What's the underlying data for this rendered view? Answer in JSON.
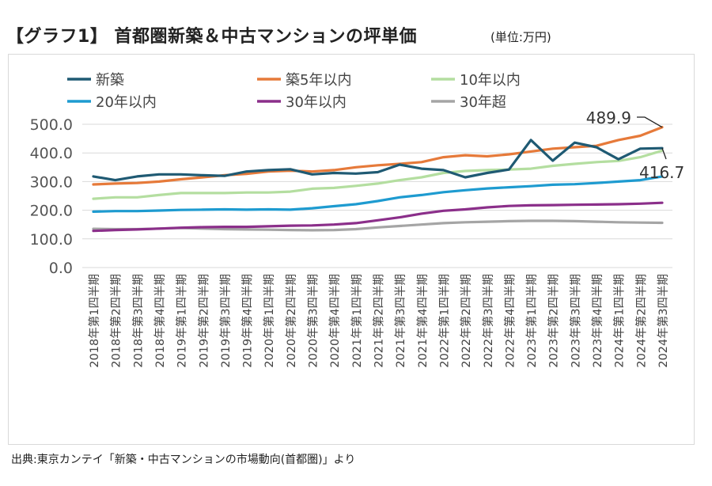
{
  "title": "【グラフ1】 首都圏新築＆中古マンションの坪単価",
  "unit": "(単位:万円)",
  "source": "出典:東京カンテイ「新築・中古マンションの市場動向(首都圏)」より",
  "chart_data": {
    "type": "line",
    "title": "【グラフ1】 首都圏新築＆中古マンションの坪単価",
    "ylabel": "",
    "xlabel": "",
    "ylim": [
      0,
      500
    ],
    "yticks": [
      "0.0",
      "100.0",
      "200.0",
      "300.0",
      "400.0",
      "500.0"
    ],
    "grid": true,
    "legend_position": "top",
    "categories": [
      "2018年第1四半期",
      "2018年第2四半期",
      "2018年第3四半期",
      "2018年第4四半期",
      "2019年第1四半期",
      "2019年第2四半期",
      "2019年第3四半期",
      "2019年第4四半期",
      "2020年第1四半期",
      "2020年第2四半期",
      "2020年第3四半期",
      "2020年第4四半期",
      "2021年第1四半期",
      "2021年第2四半期",
      "2021年第3四半期",
      "2021年第4四半期",
      "2022年第1四半期",
      "2022年第2四半期",
      "2022年第3四半期",
      "2022年第4四半期",
      "2023年第1四半期",
      "2023年第2四半期",
      "2023年第3四半期",
      "2023年第4四半期",
      "2024年第1四半期",
      "2024年第2四半期",
      "2024年第3四半期"
    ],
    "series": [
      {
        "name": "新築",
        "color": "#1f5a73",
        "values": [
          318,
          305,
          318,
          325,
          325,
          322,
          320,
          335,
          340,
          343,
          325,
          330,
          328,
          333,
          359,
          345,
          340,
          315,
          330,
          342,
          445,
          373,
          436,
          420,
          378,
          415,
          416.7
        ]
      },
      {
        "name": "築5年以内",
        "color": "#e67a3a",
        "values": [
          290,
          293,
          295,
          300,
          308,
          315,
          322,
          327,
          335,
          338,
          335,
          340,
          350,
          357,
          362,
          368,
          385,
          392,
          388,
          395,
          405,
          415,
          420,
          425,
          445,
          460,
          489.9
        ]
      },
      {
        "name": "10年以内",
        "color": "#b4dea0",
        "values": [
          240,
          245,
          245,
          253,
          260,
          260,
          260,
          262,
          262,
          265,
          275,
          278,
          285,
          293,
          305,
          315,
          330,
          337,
          340,
          342,
          345,
          355,
          362,
          368,
          372,
          385,
          408
        ]
      },
      {
        "name": "20年以内",
        "color": "#1e9bd0",
        "values": [
          195,
          197,
          197,
          199,
          201,
          202,
          203,
          202,
          203,
          202,
          207,
          214,
          221,
          232,
          245,
          253,
          263,
          270,
          276,
          280,
          284,
          289,
          291,
          295,
          300,
          305,
          318
        ]
      },
      {
        "name": "30年以内",
        "color": "#8b2f8a",
        "values": [
          128,
          131,
          133,
          136,
          139,
          141,
          142,
          142,
          144,
          146,
          147,
          150,
          155,
          165,
          175,
          188,
          198,
          203,
          210,
          215,
          217,
          218,
          219,
          220,
          221,
          223,
          226
        ]
      },
      {
        "name": "30年超",
        "color": "#a5a5a5",
        "values": [
          135,
          134,
          134,
          136,
          138,
          136,
          134,
          133,
          132,
          131,
          130,
          131,
          134,
          140,
          145,
          150,
          155,
          158,
          160,
          162,
          163,
          163,
          162,
          160,
          158,
          157,
          156
        ]
      }
    ],
    "annotations": [
      {
        "series": "築5年以内",
        "category": "2024年第3四半期",
        "label": "489.9"
      },
      {
        "series": "新築",
        "category": "2024年第3四半期",
        "label": "416.7"
      }
    ]
  }
}
